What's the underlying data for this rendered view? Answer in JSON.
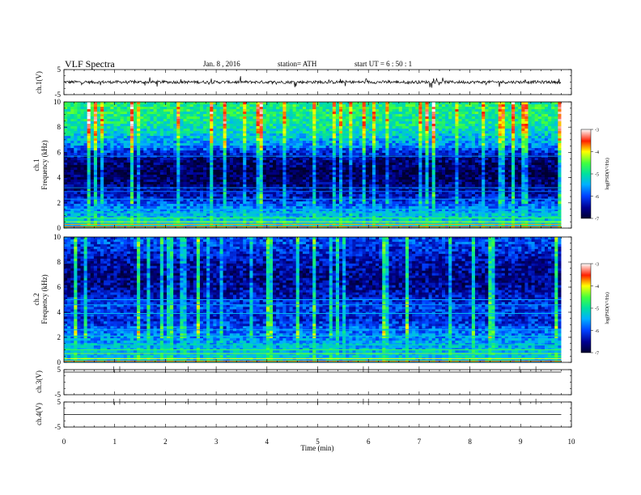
{
  "header": {
    "title": "VLF  Spectra",
    "date": "Jan.  8  ,  2016",
    "station": "station= ATH",
    "start": "start  UT  =    6  : 50 : 1"
  },
  "chart_data": [
    {
      "type": "line",
      "panel": "ch1-waveform",
      "ylabel": "ch.1(V)",
      "ylim": [
        -5,
        5
      ],
      "yticks": [
        "5",
        "-5"
      ],
      "xlim": [
        0,
        10
      ],
      "baseline": 0,
      "noise_amplitude": 0.6,
      "data_end_min": 9.8
    },
    {
      "type": "heatmap",
      "panel": "ch1-spectrogram",
      "ylabel": "ch.1\nFrequency  (kHz)",
      "ylim": [
        0,
        10
      ],
      "yticks": [
        "0",
        "2",
        "4",
        "6",
        "8",
        "10"
      ],
      "xlim": [
        0,
        10
      ],
      "data_end_min": 9.8,
      "colorbar": {
        "label": "log(PSD(V²/Hz)",
        "range": [
          -7,
          -3
        ],
        "ticks": [
          "-3",
          "-4",
          "-5",
          "-6",
          "-7"
        ]
      },
      "profile_khz": [
        0.5,
        1.5,
        2.5,
        3.5,
        4.5,
        5.5,
        6.5,
        7.5,
        8.5,
        9.5
      ],
      "profile_logpsd": [
        -5.2,
        -5.6,
        -6.3,
        -6.7,
        -6.85,
        -6.6,
        -5.7,
        -5.2,
        -4.9,
        -4.8
      ]
    },
    {
      "type": "heatmap",
      "panel": "ch2-spectrogram",
      "ylabel": "ch.2\nFrequency  (kHz)",
      "ylim": [
        0,
        10
      ],
      "yticks": [
        "0",
        "2",
        "4",
        "6",
        "8",
        "10"
      ],
      "xlim": [
        0,
        10
      ],
      "data_end_min": 9.8,
      "colorbar": {
        "label": "log(PSD(V²/Hz)",
        "range": [
          -7,
          -3
        ],
        "ticks": [
          "-3",
          "-4",
          "-5",
          "-6",
          "-7"
        ]
      },
      "profile_khz": [
        0.5,
        1.5,
        2.5,
        3.5,
        4.5,
        5.5,
        6.5,
        7.5,
        8.5,
        9.5
      ],
      "profile_logpsd": [
        -5.3,
        -5.5,
        -5.8,
        -6.2,
        -6.0,
        -6.4,
        -6.6,
        -6.5,
        -6.3,
        -6.0
      ]
    },
    {
      "type": "line",
      "panel": "ch3-waveform",
      "ylabel": "ch.3(V)",
      "ylim": [
        -5,
        5
      ],
      "yticks": [
        "5",
        "-5"
      ],
      "xlim": [
        0,
        10
      ],
      "baseline": 5,
      "data_end_min": 9.8
    },
    {
      "type": "line",
      "panel": "ch4-waveform",
      "ylabel": "ch.4(V)",
      "ylim": [
        -5,
        5
      ],
      "yticks": [
        "5",
        "-5"
      ],
      "xlim": [
        0,
        10
      ],
      "baseline": 0,
      "data_end_min": 9.8
    }
  ],
  "xaxis": {
    "label": "Time  (min)",
    "ticks": [
      "0",
      "1",
      "2",
      "3",
      "4",
      "5",
      "6",
      "7",
      "8",
      "9",
      "10"
    ]
  }
}
